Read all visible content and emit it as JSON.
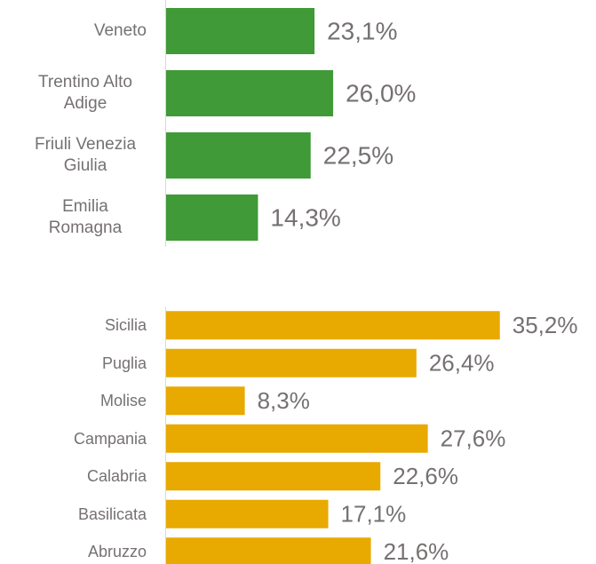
{
  "chart_data": [
    {
      "type": "bar",
      "orientation": "horizontal",
      "categories": [
        "Veneto",
        "Trentino Alto Adige",
        "Friuli Venezia Giulia",
        "Emilia Romagna"
      ],
      "values": [
        23.1,
        26.0,
        22.5,
        14.3
      ],
      "value_labels": [
        "23,1%",
        "26,0%",
        "22,5%",
        "14,3%"
      ],
      "color": "#3f9a37",
      "xlim": [
        0,
        60
      ]
    },
    {
      "type": "bar",
      "orientation": "horizontal",
      "categories": [
        "Sicilia",
        "Puglia",
        "Molise",
        "Campania",
        "Calabria",
        "Basilicata",
        "Abruzzo"
      ],
      "values": [
        35.2,
        26.4,
        8.3,
        27.6,
        22.6,
        17.1,
        21.6
      ],
      "value_labels": [
        "35,2%",
        "26,4%",
        "8,3%",
        "27,6%",
        "22,6%",
        "17,1%",
        "21,6%"
      ],
      "color": "#e8a900",
      "xlim": [
        0,
        40
      ]
    }
  ]
}
